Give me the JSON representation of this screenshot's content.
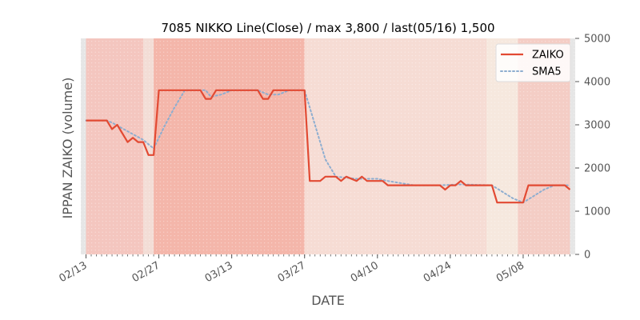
{
  "chart_data": {
    "type": "line",
    "title": "7085 NIKKO Line(Close) / max 3,800 / last(05/16) 1,500",
    "xlabel": "DATE",
    "ylabel": "IPPAN ZAIKO (volume)",
    "ylim": [
      0,
      5000
    ],
    "yticks": [
      0,
      1000,
      2000,
      3000,
      4000,
      5000
    ],
    "grid": false,
    "legend": "top-right",
    "x_ticks": [
      {
        "day": 0,
        "label": "02/13"
      },
      {
        "day": 14,
        "label": "02/27"
      },
      {
        "day": 28,
        "label": "03/13"
      },
      {
        "day": 42,
        "label": "03/27"
      },
      {
        "day": 56,
        "label": "04/10"
      },
      {
        "day": 70,
        "label": "04/24"
      },
      {
        "day": 84,
        "label": "05/08"
      }
    ],
    "xlim_days": [
      -1,
      94
    ],
    "series": [
      {
        "name": "ZAIKO",
        "color": "#e24a33",
        "style": "solid",
        "points": [
          [
            0,
            3100
          ],
          [
            4,
            3100
          ],
          [
            5,
            2900
          ],
          [
            6,
            3000
          ],
          [
            8,
            2600
          ],
          [
            9,
            2700
          ],
          [
            10,
            2600
          ],
          [
            11,
            2600
          ],
          [
            12,
            2300
          ],
          [
            13,
            2300
          ],
          [
            14,
            3800
          ],
          [
            22,
            3800
          ],
          [
            23,
            3600
          ],
          [
            24,
            3600
          ],
          [
            25,
            3800
          ],
          [
            33,
            3800
          ],
          [
            34,
            3600
          ],
          [
            35,
            3600
          ],
          [
            36,
            3800
          ],
          [
            42,
            3800
          ],
          [
            43,
            1700
          ],
          [
            45,
            1700
          ],
          [
            46,
            1800
          ],
          [
            48,
            1800
          ],
          [
            49,
            1700
          ],
          [
            50,
            1800
          ],
          [
            52,
            1700
          ],
          [
            53,
            1800
          ],
          [
            54,
            1700
          ],
          [
            57,
            1700
          ],
          [
            58,
            1600
          ],
          [
            68,
            1600
          ],
          [
            69,
            1500
          ],
          [
            70,
            1600
          ],
          [
            71,
            1600
          ],
          [
            72,
            1700
          ],
          [
            73,
            1600
          ],
          [
            78,
            1600
          ],
          [
            79,
            1200
          ],
          [
            84,
            1200
          ],
          [
            85,
            1600
          ],
          [
            92,
            1600
          ],
          [
            93,
            1500
          ]
        ]
      },
      {
        "name": "SMA5",
        "color": "#8eaed0",
        "style": "dotted",
        "points": [
          [
            0,
            3100
          ],
          [
            4,
            3100
          ],
          [
            5,
            3050
          ],
          [
            8,
            2850
          ],
          [
            11,
            2650
          ],
          [
            13,
            2450
          ],
          [
            15,
            2950
          ],
          [
            17,
            3400
          ],
          [
            19,
            3800
          ],
          [
            23,
            3800
          ],
          [
            24,
            3650
          ],
          [
            26,
            3700
          ],
          [
            28,
            3800
          ],
          [
            33,
            3800
          ],
          [
            35,
            3700
          ],
          [
            37,
            3700
          ],
          [
            39,
            3800
          ],
          [
            42,
            3800
          ],
          [
            44,
            3000
          ],
          [
            46,
            2200
          ],
          [
            48,
            1800
          ],
          [
            52,
            1750
          ],
          [
            56,
            1750
          ],
          [
            58,
            1700
          ],
          [
            63,
            1600
          ],
          [
            68,
            1600
          ],
          [
            72,
            1620
          ],
          [
            78,
            1600
          ],
          [
            80,
            1450
          ],
          [
            82,
            1300
          ],
          [
            84,
            1200
          ],
          [
            86,
            1350
          ],
          [
            88,
            1500
          ],
          [
            90,
            1600
          ],
          [
            93,
            1600
          ]
        ]
      }
    ],
    "background_bands": [
      {
        "from": -1,
        "to": 0,
        "color": "#e6e6e6"
      },
      {
        "from": 0,
        "to": 11,
        "color": "#f4c6bf"
      },
      {
        "from": 11,
        "to": 13,
        "color": "#f3ddd6"
      },
      {
        "from": 13,
        "to": 42,
        "color": "#f4b6aa"
      },
      {
        "from": 42,
        "to": 77,
        "color": "#f6dcd4"
      },
      {
        "from": 77,
        "to": 83,
        "color": "#f6e8de"
      },
      {
        "from": 83,
        "to": 93,
        "color": "#f4cdc5"
      },
      {
        "from": 93,
        "to": 94,
        "color": "#e6e6e6"
      }
    ]
  }
}
